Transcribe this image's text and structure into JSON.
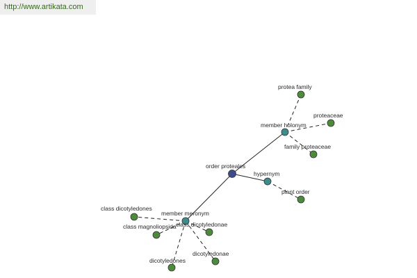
{
  "watermark": {
    "url_text": "http://www.artikata.com"
  },
  "colors": {
    "center": "#3e4a8a",
    "relation": "#3f8a8a",
    "leaf": "#4c8a3c",
    "edge": "#222222",
    "url_text": "#356a1b",
    "url_bg": "#efefef"
  },
  "graph": {
    "nodes": [
      {
        "id": "order_proteales",
        "label": "order proteales",
        "kind": "center"
      },
      {
        "id": "member_holonym",
        "label": "member holonym",
        "kind": "relation"
      },
      {
        "id": "hypernym",
        "label": "hypernym",
        "kind": "relation"
      },
      {
        "id": "member_meronym",
        "label": "member meronym",
        "kind": "relation"
      },
      {
        "id": "protea_family",
        "label": "protea family",
        "kind": "leaf"
      },
      {
        "id": "proteaceae",
        "label": "proteaceae",
        "kind": "leaf"
      },
      {
        "id": "family_proteaceae",
        "label": "family proteaceae",
        "kind": "leaf"
      },
      {
        "id": "plant_order",
        "label": "plant order",
        "kind": "leaf"
      },
      {
        "id": "class_dicotyledones",
        "label": "class dicotyledones",
        "kind": "leaf"
      },
      {
        "id": "class_magnoliopsida",
        "label": "class magnoliopsida",
        "kind": "leaf"
      },
      {
        "id": "class_dicotyledonae",
        "label": "class dicotyledonae",
        "kind": "leaf"
      },
      {
        "id": "dicotyledones",
        "label": "dicotyledones",
        "kind": "leaf"
      },
      {
        "id": "dicotyledonae",
        "label": "dicotyledonae",
        "kind": "leaf"
      }
    ],
    "edges": [
      {
        "from": "order_proteales",
        "to": "member_holonym",
        "style": "solid"
      },
      {
        "from": "order_proteales",
        "to": "hypernym",
        "style": "solid"
      },
      {
        "from": "order_proteales",
        "to": "member_meronym",
        "style": "solid"
      },
      {
        "from": "member_holonym",
        "to": "protea_family",
        "style": "dashed"
      },
      {
        "from": "member_holonym",
        "to": "proteaceae",
        "style": "dashed"
      },
      {
        "from": "member_holonym",
        "to": "family_proteaceae",
        "style": "dashed"
      },
      {
        "from": "hypernym",
        "to": "plant_order",
        "style": "dashed"
      },
      {
        "from": "member_meronym",
        "to": "class_dicotyledones",
        "style": "dashed"
      },
      {
        "from": "member_meronym",
        "to": "class_magnoliopsida",
        "style": "dashed"
      },
      {
        "from": "member_meronym",
        "to": "class_dicotyledonae",
        "style": "dashed"
      },
      {
        "from": "member_meronym",
        "to": "dicotyledones",
        "style": "dashed"
      },
      {
        "from": "member_meronym",
        "to": "dicotyledonae",
        "style": "dashed"
      }
    ]
  }
}
